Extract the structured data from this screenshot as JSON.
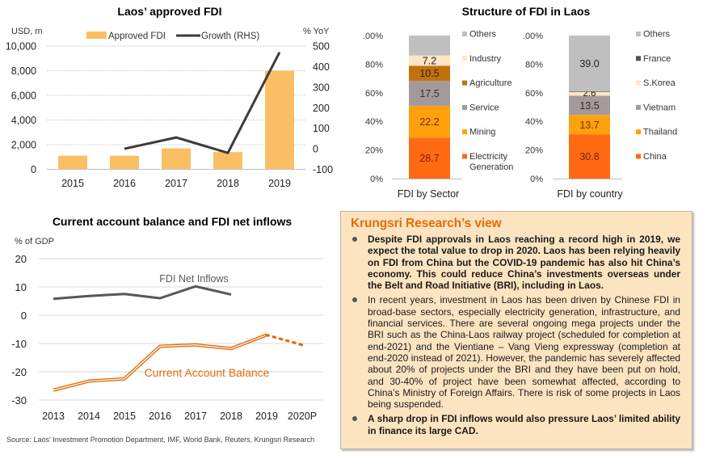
{
  "chart_data": [
    {
      "type": "bar",
      "title": "Laos’ approved FDI",
      "ylabel": "USD, m",
      "y2label": "% YoY",
      "categories": [
        "2015",
        "2016",
        "2017",
        "2018",
        "2019"
      ],
      "ylim": [
        0,
        10000
      ],
      "yticks": [
        "0",
        "2,000",
        "4,000",
        "6,000",
        "8,000",
        "10,000"
      ],
      "y2lim": [
        -100,
        500
      ],
      "y2ticks": [
        "-100",
        "0",
        "100",
        "200",
        "300",
        "400",
        "500"
      ],
      "grid": true,
      "legend": "top",
      "series": [
        {
          "name": "Approved FDI",
          "type": "bar",
          "axis": "left",
          "color": "#FBBF63",
          "values": [
            1100,
            1100,
            1700,
            1400,
            8000
          ]
        },
        {
          "name": "Growth (RHS)",
          "type": "line",
          "axis": "right",
          "color": "#3F3A3C",
          "values": [
            null,
            0,
            55,
            -20,
            470
          ]
        }
      ]
    },
    {
      "type": "bar",
      "stacked": true,
      "title": "Structure of FDI in Laos",
      "panels": [
        {
          "xlabel": "FDI by Sector",
          "yticks": [
            ".00%",
            "80%",
            "60%",
            "40%",
            "20%",
            "0%"
          ],
          "ylim": [
            0,
            100
          ],
          "segments": [
            {
              "name": "Electricity Generation",
              "value": 28.7,
              "label": "28.7",
              "color": "#FF6A13",
              "label_color": "#7a1f00"
            },
            {
              "name": "Mining",
              "value": 22.2,
              "label": "22.2",
              "color": "#FFA10C",
              "label_color": "#7a2a00"
            },
            {
              "name": "Service",
              "value": 17.5,
              "label": "17.5",
              "color": "#A39A9C",
              "label_color": "#3a2f30"
            },
            {
              "name": "Agriculture",
              "value": 10.5,
              "label": "10.5",
              "color": "#C0720E",
              "label_color": "#3a1e00"
            },
            {
              "name": "Industry",
              "value": 7.2,
              "label": "7.2",
              "color": "#FDE6C1",
              "label_color": "#222222"
            },
            {
              "name": "Others",
              "value": 13.9,
              "label": "",
              "color": "#BFBFBF",
              "label_color": "#222222"
            }
          ],
          "legend": [
            "Others",
            "Industry",
            "Agriculture",
            "Service",
            "Mining",
            "Electricity Generation"
          ]
        },
        {
          "xlabel": "FDI by country",
          "yticks": [
            ".00%",
            "80%",
            "60%",
            "40%",
            "20%",
            "0%"
          ],
          "ylim": [
            0,
            100
          ],
          "segments": [
            {
              "name": "China",
              "value": 30.8,
              "label": "30.8",
              "color": "#FF6A13",
              "label_color": "#7a1f00"
            },
            {
              "name": "Thailand",
              "value": 13.7,
              "label": "13.7",
              "color": "#FFA10C",
              "label_color": "#7a2a00"
            },
            {
              "name": "Vietnam",
              "value": 13.5,
              "label": "13.5",
              "color": "#A39A9C",
              "label_color": "#3a2f30"
            },
            {
              "name": "S.Korea",
              "value": 2.6,
              "label": "2.6",
              "color": "#FDE6C1",
              "label_color": "#222222"
            },
            {
              "name": "France",
              "value": 0.4,
              "label": "",
              "color": "#555555",
              "label_color": "#222222"
            },
            {
              "name": "Others",
              "value": 39.0,
              "label": "39.0",
              "color": "#BFBFBF",
              "label_color": "#222222"
            }
          ],
          "legend": [
            "Others",
            "France",
            "S.Korea",
            "Vietnam",
            "Thailand",
            "China"
          ]
        }
      ]
    },
    {
      "type": "line",
      "title": "Current account balance and FDI net inflows",
      "ylabel": "% of GDP",
      "x": [
        "2013",
        "2014",
        "2015",
        "2016",
        "2017",
        "2018",
        "2019",
        "2020P"
      ],
      "ylim": [
        -30,
        20
      ],
      "yticks": [
        "-30",
        "-20",
        "-10",
        "0",
        "10",
        "20"
      ],
      "grid": true,
      "series": [
        {
          "name": "FDI Net Inflows",
          "color": "#5B5556",
          "values": [
            5.8,
            6.8,
            7.5,
            6.0,
            10.2,
            7.3,
            null,
            null
          ]
        },
        {
          "name": "Current Account Balance",
          "color": "#E46C0A",
          "values": [
            -26.5,
            -23.3,
            -22.5,
            -11.0,
            -10.5,
            -11.8,
            -7.0,
            -10.5
          ],
          "projected_from": "2019"
        }
      ],
      "annotations": [
        "FDI Net Inflows",
        "Current Account Balance"
      ]
    }
  ],
  "source": "Source: Laos’ Investment Promotion Department, IMF, World Bank, Reuters, Krungsri Research",
  "view": {
    "title": "Krungsri Research’s view",
    "items": [
      {
        "bold": true,
        "text": "Despite FDI approvals in Laos reaching a record high in 2019, we expect the total value to drop in 2020. Laos has been relying heavily on FDI from China but the COVID-19 pandemic has also hit China’s economy. This could reduce China’s investments overseas under the Belt and Road Initiative (BRI), including in Laos."
      },
      {
        "bold": false,
        "text": "In recent years, investment in Laos has been driven by Chinese FDI in broad-base sectors, especially electricity generation, infrastructure, and financial services. There are several ongoing mega projects under the BRI such as the China-Laos railway project (scheduled for completion at end-2021) and the Vientiane – Vang Vieng expressway (completion at end-2020 instead of 2021). However, the pandemic has severely affected about 20% of projects under the BRI and they have been put on hold, and 30-40% of project have been somewhat affected, according to China’s Ministry of Foreign Affairs. There is risk of some projects in Laos being suspended."
      },
      {
        "bold": true,
        "text": "A sharp drop in FDI inflows would also pressure Laos’ limited ability in finance its large CAD."
      }
    ]
  }
}
